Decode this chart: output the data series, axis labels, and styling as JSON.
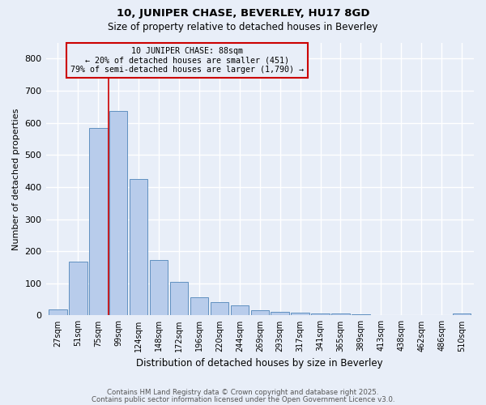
{
  "title1": "10, JUNIPER CHASE, BEVERLEY, HU17 8GD",
  "title2": "Size of property relative to detached houses in Beverley",
  "xlabel": "Distribution of detached houses by size in Beverley",
  "ylabel": "Number of detached properties",
  "categories": [
    "27sqm",
    "51sqm",
    "75sqm",
    "99sqm",
    "124sqm",
    "148sqm",
    "172sqm",
    "196sqm",
    "220sqm",
    "244sqm",
    "269sqm",
    "293sqm",
    "317sqm",
    "341sqm",
    "365sqm",
    "389sqm",
    "413sqm",
    "438sqm",
    "462sqm",
    "486sqm",
    "510sqm"
  ],
  "values": [
    18,
    168,
    585,
    638,
    425,
    172,
    105,
    57,
    42,
    32,
    15,
    10,
    9,
    7,
    5,
    3,
    2,
    1,
    0,
    0,
    6
  ],
  "bar_color": "#b8cceb",
  "bar_edge_color": "#6090c0",
  "annotation_line1": "10 JUNIPER CHASE: 88sqm",
  "annotation_line2": "← 20% of detached houses are smaller (451)",
  "annotation_line3": "79% of semi-detached houses are larger (1,790) →",
  "annotation_box_color": "#cc0000",
  "red_line_x": 2.52,
  "ylim": [
    0,
    850
  ],
  "yticks": [
    0,
    100,
    200,
    300,
    400,
    500,
    600,
    700,
    800
  ],
  "footer1": "Contains HM Land Registry data © Crown copyright and database right 2025.",
  "footer2": "Contains public sector information licensed under the Open Government Licence v3.0.",
  "bg_color": "#e8eef8",
  "grid_color": "#ffffff"
}
